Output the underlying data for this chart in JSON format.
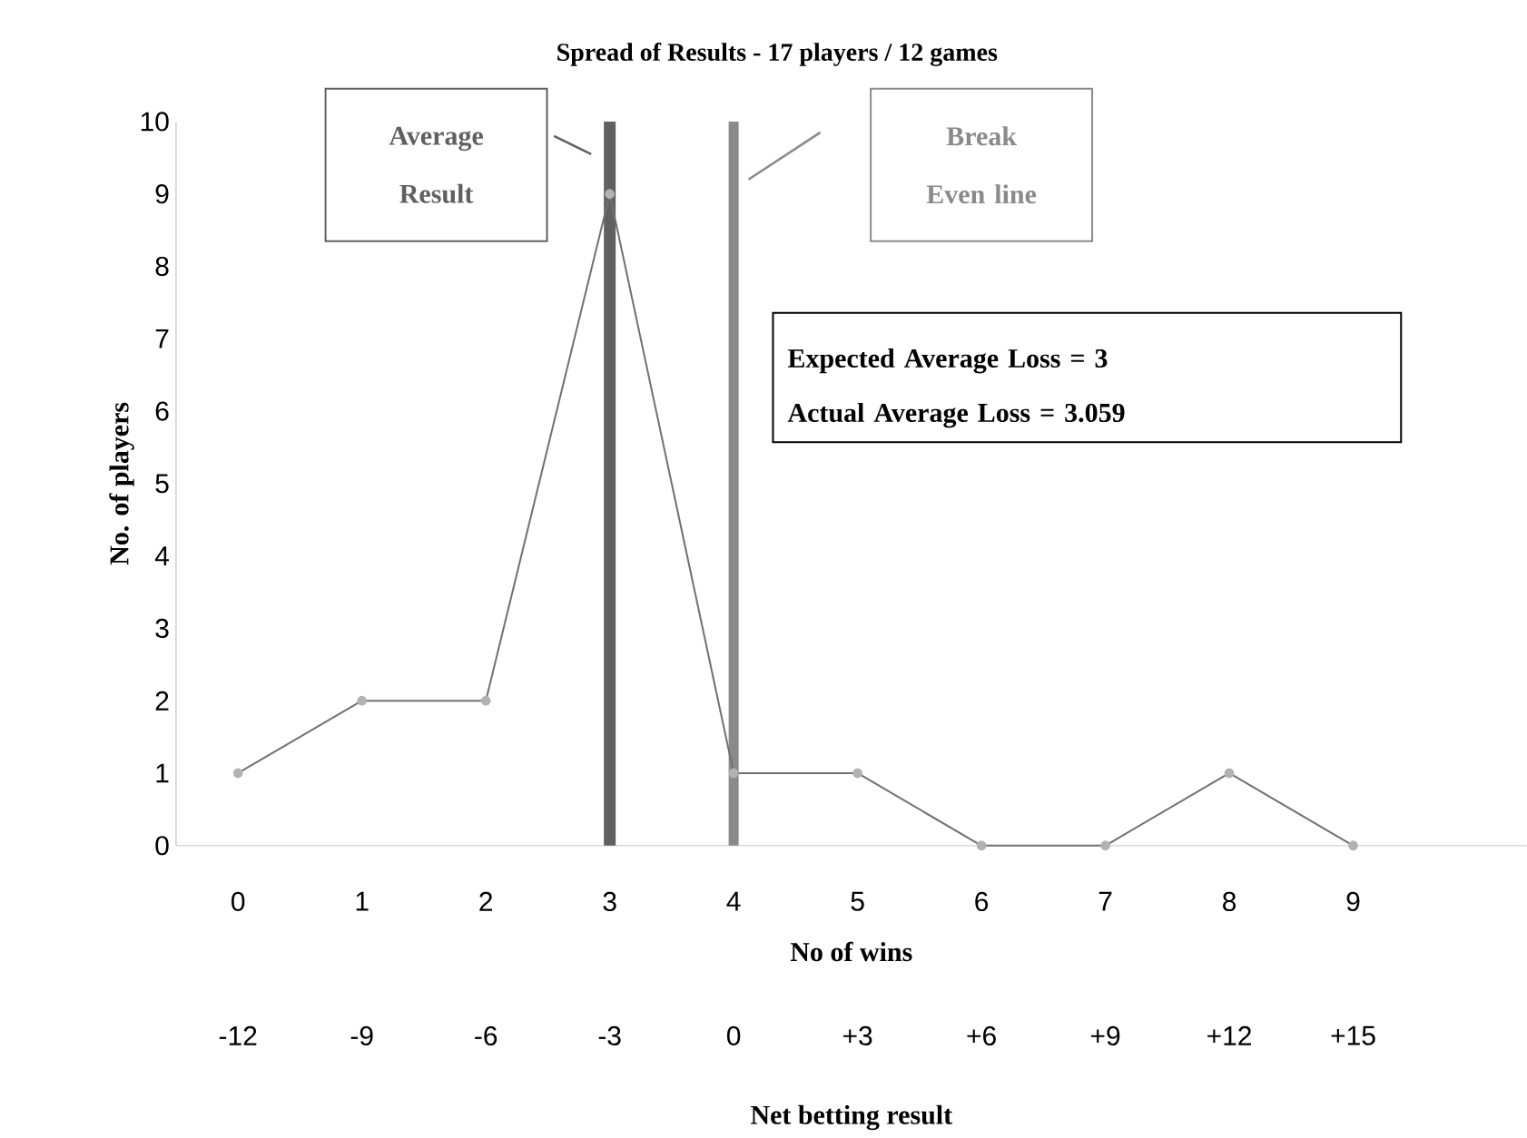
{
  "chart_data": {
    "type": "line",
    "title": "Spread of Results - 17 players / 12 games",
    "xlabel": "No of wins",
    "ylabel": "No. of players",
    "x2label": "Net betting result",
    "x": [
      0,
      1,
      2,
      3,
      4,
      5,
      6,
      7,
      8,
      9
    ],
    "series": [
      {
        "color": "#707070",
        "values": [
          1,
          2,
          2,
          9,
          1,
          1,
          0,
          0,
          1,
          0
        ]
      }
    ],
    "marker": "circle",
    "line_style": "solid",
    "grid": false,
    "xlim": [
      -0.5,
      10.4
    ],
    "xticks": [
      0,
      1,
      2,
      3,
      4,
      5,
      6,
      7,
      8,
      9
    ],
    "x2lim": [
      -13.5,
      19.2
    ],
    "x2ticks": [
      -12,
      -9,
      -6,
      -3,
      0,
      {
        "value": 3,
        "label": "+3"
      },
      {
        "value": 6,
        "label": "+6"
      },
      {
        "value": 9,
        "label": "+9"
      },
      {
        "value": 12,
        "label": "+12"
      },
      {
        "value": 15,
        "label": "+15"
      }
    ],
    "ylim": [
      0,
      10
    ],
    "yticks": [
      0,
      1,
      2,
      3,
      4,
      5,
      6,
      7,
      8,
      9,
      10
    ],
    "ref_lines": [
      {
        "axis": "x",
        "value": 3,
        "label": "Average Result",
        "color": "#606060"
      },
      {
        "axis": "x",
        "value": 4,
        "label": "Break Even line",
        "color": "#8a8a8a"
      }
    ],
    "annotations": [
      "Expected Average Loss = 3",
      "Actual Average Loss = 3.059"
    ]
  }
}
